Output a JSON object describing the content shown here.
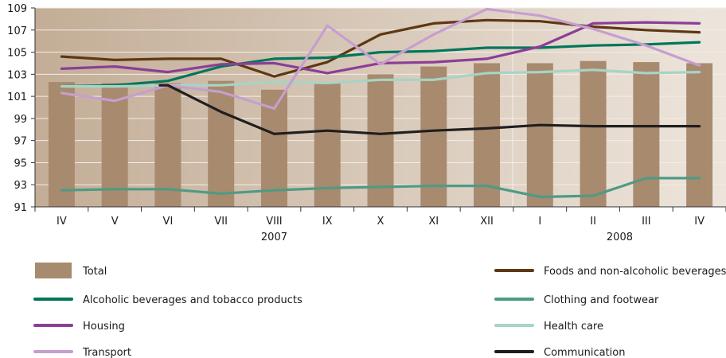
{
  "chart_data": {
    "type": "bar",
    "categories": [
      "IV",
      "V",
      "VI",
      "VII",
      "VIII",
      "IX",
      "X",
      "XI",
      "XII",
      "I",
      "II",
      "III",
      "IV"
    ],
    "years": [
      {
        "label": "2007",
        "from": 0,
        "to": 8
      },
      {
        "label": "2008",
        "from": 9,
        "to": 12
      }
    ],
    "ylim": [
      91,
      109
    ],
    "yticks": [
      91,
      93,
      95,
      97,
      99,
      101,
      103,
      105,
      107,
      109
    ],
    "bar_series": {
      "name": "Total",
      "color": "#a88a6e",
      "values": [
        102.3,
        102.2,
        102.2,
        102.4,
        101.6,
        102.3,
        103.0,
        103.7,
        104.0,
        104.0,
        104.2,
        104.1,
        104.0
      ]
    },
    "series": [
      {
        "name": "Foods and non-alcoholic beverages",
        "color": "#5e3812",
        "values": [
          104.6,
          104.3,
          104.4,
          104.4,
          102.8,
          104.1,
          106.6,
          107.6,
          107.9,
          107.8,
          107.3,
          107.0,
          106.8
        ]
      },
      {
        "name": "Alcoholic beverages and tobacco products",
        "color": "#00765a",
        "values": [
          101.9,
          102.0,
          102.4,
          103.7,
          104.4,
          104.5,
          105.0,
          105.1,
          105.4,
          105.4,
          105.6,
          105.7,
          105.9
        ]
      },
      {
        "name": "Clothing and footwear",
        "color": "#4f9a85",
        "values": [
          92.5,
          92.6,
          92.6,
          92.2,
          92.5,
          92.7,
          92.8,
          92.9,
          92.9,
          91.9,
          92.0,
          93.6,
          93.6
        ]
      },
      {
        "name": "Housing",
        "color": "#8c3e97",
        "values": [
          103.5,
          103.7,
          103.2,
          103.9,
          104.0,
          103.1,
          104.0,
          104.1,
          104.4,
          105.5,
          107.6,
          107.7,
          107.6
        ]
      },
      {
        "name": "Health care",
        "color": "#a6d4c6",
        "values": [
          101.9,
          101.9,
          102.0,
          102.0,
          102.3,
          102.2,
          102.5,
          102.5,
          103.1,
          103.2,
          103.4,
          103.1,
          103.2
        ]
      },
      {
        "name": "Transport",
        "color": "#c79ecf",
        "values": [
          101.3,
          100.6,
          102.0,
          101.4,
          99.9,
          107.4,
          103.9,
          106.6,
          108.9,
          108.3,
          107.1,
          105.6,
          103.8
        ]
      },
      {
        "name": "Communication",
        "color": "#1f1f1f",
        "start_index": 2,
        "values": [
          null,
          null,
          102.0,
          99.6,
          97.6,
          97.9,
          97.6,
          97.9,
          98.1,
          98.4,
          98.3,
          98.3,
          98.3
        ]
      }
    ],
    "legend": {
      "placement": "bottom",
      "left": [
        {
          "label": "Total",
          "kind": "bar",
          "color": "#a88a6e"
        },
        {
          "label": "Alcoholic beverages and tobacco products",
          "kind": "line",
          "color": "#00765a"
        },
        {
          "label": "Housing",
          "kind": "line",
          "color": "#8c3e97"
        },
        {
          "label": "Transport",
          "kind": "line",
          "color": "#c79ecf"
        }
      ],
      "right": [
        {
          "label": "Foods and non-alcoholic beverages",
          "kind": "line",
          "color": "#5e3812"
        },
        {
          "label": "Clothing and footwear",
          "kind": "line",
          "color": "#4f9a85"
        },
        {
          "label": "Health care",
          "kind": "line",
          "color": "#a6d4c6"
        },
        {
          "label": "Communication",
          "kind": "line",
          "color": "#1f1f1f"
        }
      ]
    },
    "background_gradient": [
      "#c3ad96",
      "#ede5dc"
    ],
    "grid": "horizontal"
  }
}
